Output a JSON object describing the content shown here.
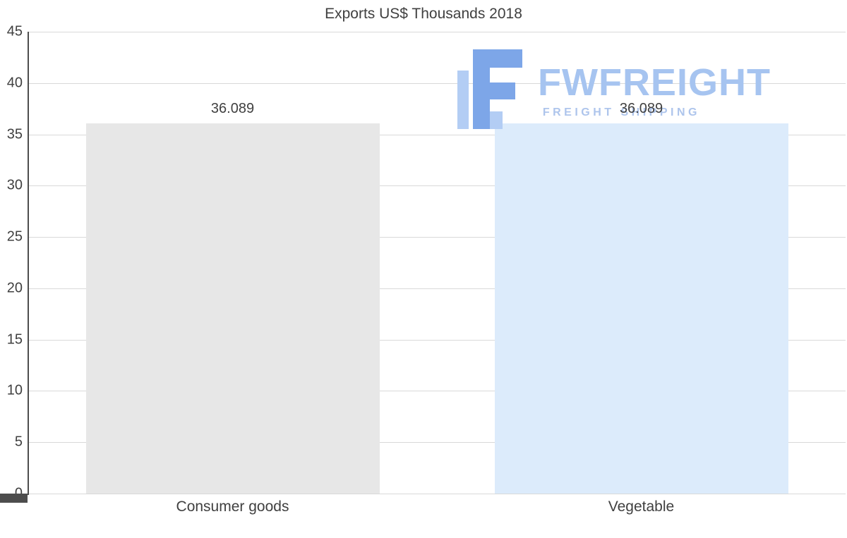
{
  "chart_data": {
    "type": "bar",
    "title": "Exports US$ Thousands 2018",
    "categories": [
      "Consumer goods",
      "Vegetable"
    ],
    "values": [
      36.089,
      36.089
    ],
    "value_labels": [
      "36.089",
      "36.089"
    ],
    "bar_colors": [
      "#e7e7e7",
      "#dcebfb"
    ],
    "ylim": [
      0,
      45
    ],
    "yticks": [
      0,
      5,
      10,
      15,
      20,
      25,
      30,
      35,
      40,
      45
    ],
    "ytick_labels": [
      "0",
      "5",
      "10",
      "15",
      "20",
      "25",
      "30",
      "35",
      "40",
      "45"
    ],
    "grid": "horizontal",
    "legend": "none",
    "xlabel": "",
    "ylabel": ""
  },
  "watermark": {
    "brand": "FWFREIGHT",
    "tagline": "FREIGHT SHIPPING",
    "brand_color": "#a6c4f0",
    "tagline_color": "#aec5ec",
    "icon_main_color": "#7da6e8",
    "icon_light_color": "#b3cdf4"
  },
  "style": {
    "gridline_color": "#d9d9d9",
    "axis_color": "#4d4d4d",
    "text_color": "#404040",
    "background": "#ffffff"
  }
}
